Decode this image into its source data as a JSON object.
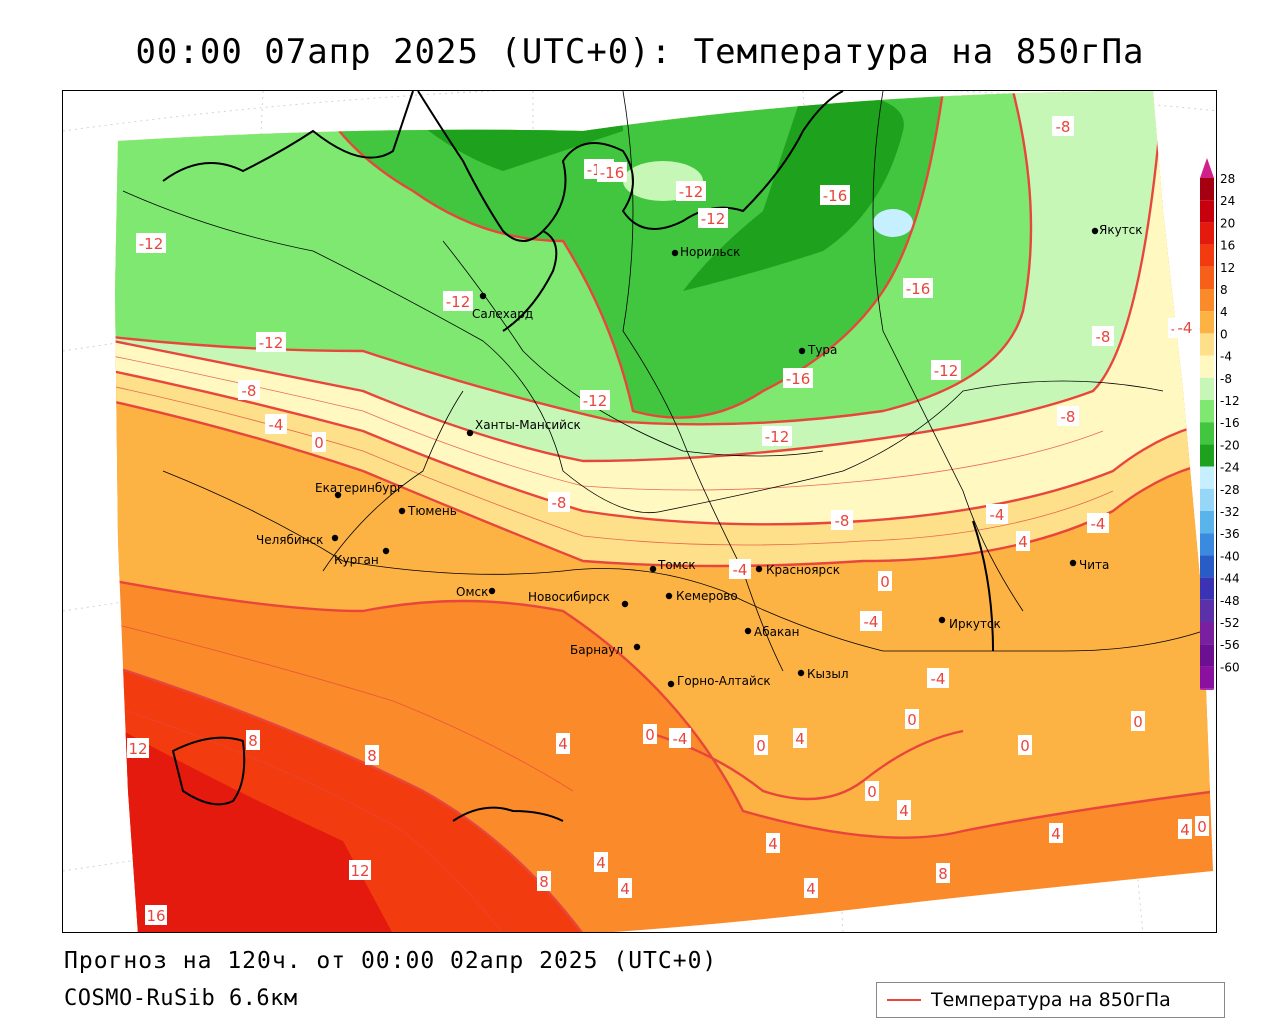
{
  "title": "00:00 07апр 2025 (UTC+0): Температура на 850гПа",
  "forecast_info": "Прогноз на 120ч. от 00:00 02апр 2025 (UTC+0)",
  "model": "COSMO-RuSib 6.6км",
  "legend": {
    "label": "Температура на 850гПа",
    "line_color": "#e8463c"
  },
  "colorbar": {
    "ticks": [
      "28",
      "24",
      "20",
      "16",
      "12",
      "8",
      "4",
      "0",
      "-4",
      "-8",
      "-12",
      "-16",
      "-20",
      "-24",
      "-28",
      "-32",
      "-36",
      "-40",
      "-44",
      "-48",
      "-52",
      "-56",
      "-60"
    ],
    "colors": [
      "#a50010",
      "#c8000e",
      "#e41a0e",
      "#f23c10",
      "#f76018",
      "#fb8a2a",
      "#fdb244",
      "#fde089",
      "#fff8c0",
      "#c6f7b6",
      "#7ee870",
      "#42c640",
      "#1ea21e",
      "#c6efff",
      "#96d6f6",
      "#5ab4ec",
      "#3a8ae0",
      "#2a5cc8",
      "#3a34b4",
      "#5c30a8",
      "#7820a0",
      "#6a1090",
      "#8a10a0"
    ],
    "top_color": "#d0208a",
    "bottom_color": "#b430b4"
  },
  "cities": [
    {
      "name": "Салехард"
    },
    {
      "name": "Норильск"
    },
    {
      "name": "Якутск"
    },
    {
      "name": "Тура"
    },
    {
      "name": "Ханты-Мансийск"
    },
    {
      "name": "Екатеринбург"
    },
    {
      "name": "Тюмень"
    },
    {
      "name": "Челябинск"
    },
    {
      "name": "Курган"
    },
    {
      "name": "Омск"
    },
    {
      "name": "Новосибирск"
    },
    {
      "name": "Томск"
    },
    {
      "name": "Красноярск"
    },
    {
      "name": "Кемерово"
    },
    {
      "name": "Барнаул"
    },
    {
      "name": "Абакан"
    },
    {
      "name": "Иркутск"
    },
    {
      "name": "Чита"
    },
    {
      "name": "Горно-Алтайск"
    },
    {
      "name": "Кызыл"
    }
  ],
  "contour_labels": [
    "-12",
    "-12",
    "-12",
    "-16",
    "-12",
    "-8",
    "-16",
    "-16",
    "-12",
    "-12",
    "-8",
    "-12",
    "-12",
    "-16",
    "-12",
    "-8",
    "-4",
    "-8",
    "0",
    "-8",
    "-8",
    "-4",
    "-4",
    "-4",
    "0",
    "-4",
    "-4",
    "4",
    "0",
    "-4",
    "0",
    "0",
    "0",
    "12",
    "8",
    "8",
    "4",
    "0",
    "4",
    "0",
    "4",
    "0",
    "4",
    "4",
    "12",
    "8",
    "4",
    "4",
    "4",
    "8",
    "4",
    "4",
    "16",
    "-16",
    "-4"
  ]
}
